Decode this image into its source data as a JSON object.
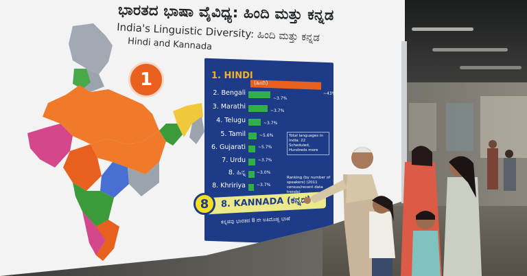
{
  "title_kannada": "ಭಾರತದ ಭಾಷಾ ವೈವಿಧ್ಯ: ಹಿಂದಿ ಮತ್ತು ಕನ್ನಡ",
  "title_english": "India's Linguistic Diversity: ಹಿಂದಿ ಮತ್ತು ಕನ್ನಡ",
  "subtitle": "Hindi and Kannada",
  "rank_badge": "1",
  "hindi_row": {
    "label": "1. HINDI",
    "native": "(ಹಿಂದಿ)",
    "pct": "~43%"
  },
  "rows": [
    {
      "label": "2. Bengali",
      "pct": "~3.7%"
    },
    {
      "label": "3. Marathi",
      "pct": "~3.7%"
    },
    {
      "label": "4. Telugu",
      "pct": "~3.7%"
    },
    {
      "label": "5. Tamil",
      "pct": "~5.6%"
    },
    {
      "label": "6. Gujarati",
      "pct": "~5.7%"
    },
    {
      "label": "7. Urdu",
      "pct": "~3.7%"
    },
    {
      "label": "8. ಹಿನ್ನ",
      "pct": "~3.0%"
    },
    {
      "label": "8. Khririya",
      "pct": "~3.7%"
    }
  ],
  "note_box": "Total languages in India: 22 Scheduled, Hundreds more",
  "note_ranking": "Ranking (by number of speakers) (2011 census/recent data trends)",
  "kannada_rank": "8",
  "kannada_label": "8. KANNADA (ಕನ್ನಡ)",
  "kannada_footer": "ಕನ್ನಡವು ಭಾರತದ 8 ನೇ ಅತಿದೊಡ್ಡ ಭಾಷೆ",
  "colors": {
    "hindi": "#e8601d",
    "bars": "#2fae4a",
    "panel": "#1d3b86",
    "kannada_bar": "#ece98a",
    "badge": "#f6de27"
  }
}
